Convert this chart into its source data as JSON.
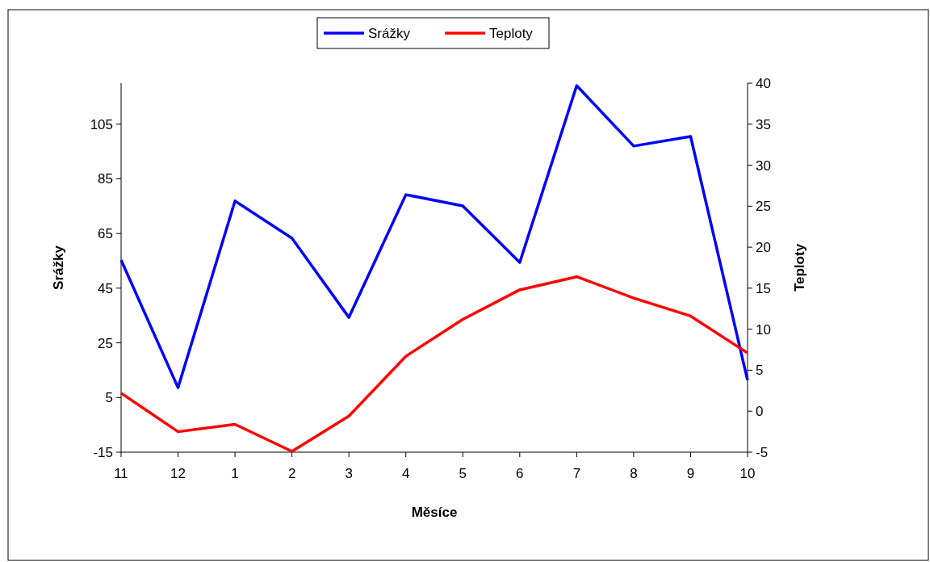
{
  "chart_data": {
    "type": "line",
    "xlabel": "Měsíce",
    "ylabel": "Srážky",
    "y2label": "Teploty",
    "categories": [
      "11",
      "12",
      "1",
      "2",
      "3",
      "4",
      "5",
      "6",
      "7",
      "8",
      "9",
      "10"
    ],
    "series": [
      {
        "name": "Srážky",
        "color": "#0000ff",
        "values": [
          55.3,
          8.6,
          76.9,
          63.3,
          34.3,
          79.2,
          75.1,
          54.4,
          119.1,
          97,
          100.5,
          11.3
        ]
      },
      {
        "name": "Teploty",
        "color": "#ff0000",
        "axis": "y2",
        "values": [
          2.2,
          -2.5,
          -1.6,
          -4.9,
          -0.6,
          6.7,
          11.2,
          14.8,
          16.4,
          13.8,
          11.6,
          7.1
        ]
      }
    ],
    "ylim": [
      -15,
      120
    ],
    "yticks": [
      -15,
      5,
      25,
      45,
      65,
      85,
      105
    ],
    "y2lim": [
      -5,
      40
    ],
    "y2ticks": [
      -5,
      0,
      5,
      10,
      15,
      20,
      25,
      30,
      35,
      40
    ],
    "grid": false,
    "legend": "top",
    "marker": "none",
    "line_style": "solid"
  }
}
